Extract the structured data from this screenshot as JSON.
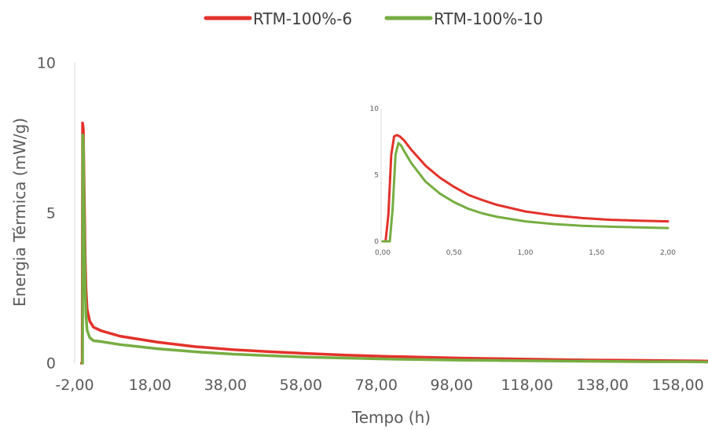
{
  "chart_data": [
    {
      "type": "line",
      "xlabel": "Tempo (h)",
      "ylabel": "Energia Térmica  (mW/g)",
      "xlim": [
        -2,
        166
      ],
      "ylim": [
        0,
        10
      ],
      "x_ticks": [
        "-2,00",
        "18,00",
        "38,00",
        "58,00",
        "78,00",
        "98,00",
        "118,00",
        "138,00",
        "158,00"
      ],
      "y_ticks": [
        "0",
        "5",
        "10"
      ],
      "grid": false,
      "legend_position": "top",
      "series": [
        {
          "name": "RTM-100%-6",
          "color": "#e3312a",
          "x": [
            -0.2,
            0.0,
            0.1,
            0.3,
            0.5,
            0.8,
            1.0,
            1.3,
            2.0,
            3.0,
            5.0,
            10.0,
            20.0,
            30.0,
            40.0,
            50.0,
            60.0,
            70.0,
            80.0,
            90.0,
            100.0,
            110.0,
            120.0,
            130.0,
            140.0,
            150.0,
            160.0,
            166.0
          ],
          "y": [
            0,
            0,
            8.0,
            7.8,
            6.0,
            3.5,
            2.5,
            1.8,
            1.4,
            1.2,
            1.08,
            0.9,
            0.7,
            0.55,
            0.45,
            0.38,
            0.32,
            0.27,
            0.23,
            0.2,
            0.17,
            0.15,
            0.13,
            0.11,
            0.1,
            0.09,
            0.08,
            0.07
          ]
        },
        {
          "name": "RTM-100%-10",
          "color": "#76ad42",
          "x": [
            0.0,
            0.1,
            0.15,
            0.3,
            0.5,
            0.8,
            1.0,
            1.3,
            2.0,
            3.0,
            5.0,
            10.0,
            20.0,
            30.0,
            40.0,
            50.0,
            60.0,
            70.0,
            80.0,
            90.0,
            100.0,
            110.0,
            120.0,
            130.0,
            140.0,
            150.0,
            160.0,
            166.0
          ],
          "y": [
            0,
            0,
            7.6,
            7.3,
            5.0,
            2.5,
            1.6,
            1.1,
            0.85,
            0.75,
            0.72,
            0.62,
            0.48,
            0.38,
            0.3,
            0.25,
            0.2,
            0.17,
            0.14,
            0.12,
            0.1,
            0.09,
            0.08,
            0.07,
            0.06,
            0.05,
            0.05,
            0.04
          ]
        }
      ]
    },
    {
      "type": "line",
      "xlim": [
        0,
        2
      ],
      "ylim": [
        0,
        10
      ],
      "x_ticks": [
        "0,00",
        "0,50",
        "1,00",
        "1,50",
        "2,00"
      ],
      "y_ticks": [
        "0",
        "5",
        "10"
      ],
      "grid": false,
      "series": [
        {
          "name": "RTM-100%-6",
          "color": "#e3312a",
          "x": [
            0.0,
            0.02,
            0.04,
            0.06,
            0.08,
            0.1,
            0.12,
            0.15,
            0.2,
            0.3,
            0.4,
            0.5,
            0.6,
            0.7,
            0.8,
            1.0,
            1.2,
            1.4,
            1.6,
            1.8,
            2.0
          ],
          "y": [
            0,
            0,
            2.0,
            6.5,
            7.9,
            8.0,
            7.9,
            7.6,
            6.9,
            5.7,
            4.8,
            4.1,
            3.5,
            3.1,
            2.75,
            2.25,
            1.95,
            1.75,
            1.62,
            1.55,
            1.5
          ]
        },
        {
          "name": "RTM-100%-10",
          "color": "#76ad42",
          "x": [
            0.0,
            0.05,
            0.07,
            0.09,
            0.11,
            0.13,
            0.15,
            0.2,
            0.3,
            0.4,
            0.5,
            0.6,
            0.7,
            0.8,
            1.0,
            1.2,
            1.4,
            1.6,
            1.8,
            2.0
          ],
          "y": [
            0,
            0,
            2.5,
            6.5,
            7.4,
            7.2,
            6.8,
            5.9,
            4.5,
            3.6,
            2.95,
            2.45,
            2.1,
            1.85,
            1.5,
            1.3,
            1.17,
            1.1,
            1.05,
            1.0
          ]
        }
      ]
    }
  ]
}
